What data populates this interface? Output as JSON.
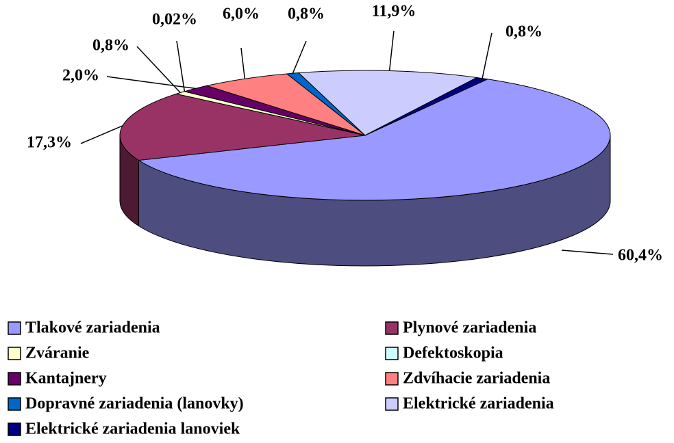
{
  "chart_data": {
    "type": "pie",
    "categories": [
      "Tlakové zariadenia",
      "Plynové zariadenia",
      "Zváranie",
      "Defektoskopia",
      "Kantajnery",
      "Zdvíhacie zariadenia",
      "Dopravné zariadenia (lanovky)",
      "Elektrické zariadenia",
      "Elektrické zariadenia lanoviek"
    ],
    "values": [
      60.4,
      17.3,
      0.8,
      0.02,
      2.0,
      6.0,
      0.8,
      11.9,
      0.8
    ],
    "value_labels": [
      "60,4%",
      "17,3%",
      "0,8%",
      "0,02%",
      "2,0%",
      "6,0%",
      "0,8%",
      "11,9%",
      "0,8%"
    ],
    "colors": [
      "#9999ff",
      "#993366",
      "#ffffcc",
      "#ccffff",
      "#660066",
      "#ff8080",
      "#0066cc",
      "#ccccff",
      "#000080"
    ],
    "legend": "bottom"
  }
}
